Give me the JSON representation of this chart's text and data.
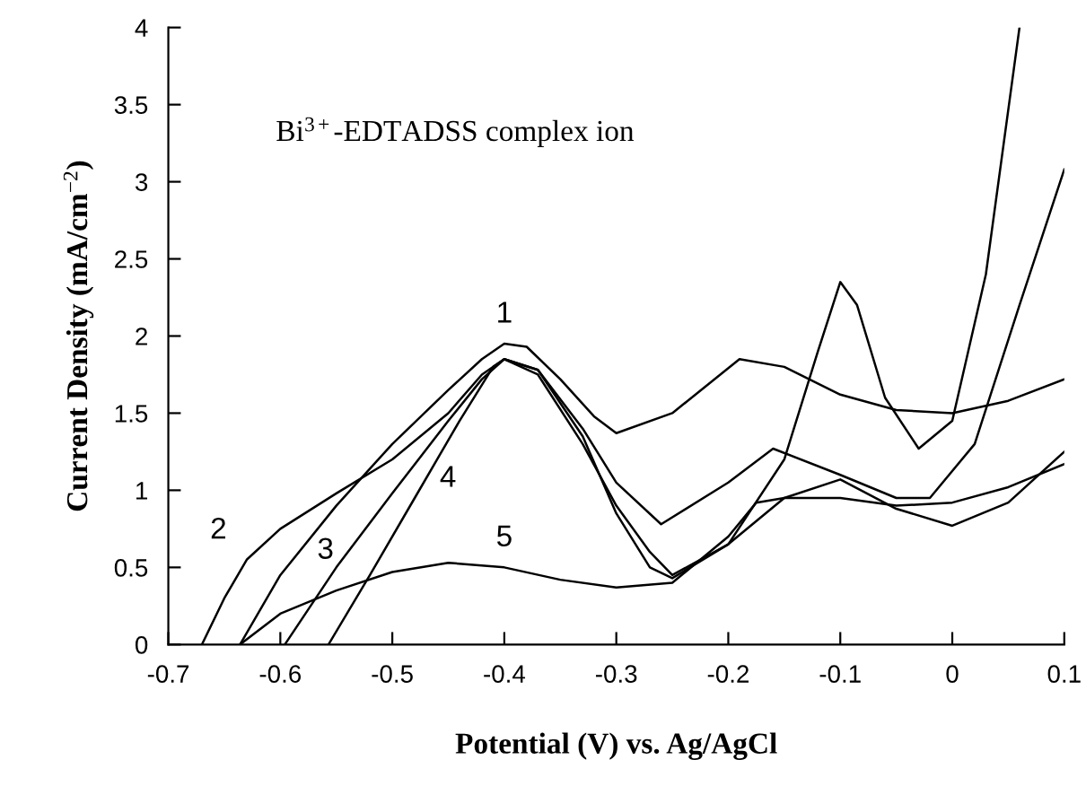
{
  "chart_data": {
    "type": "line",
    "xlabel": "Potential (V) vs. Ag/AgCl",
    "ylabel": "Current Density (mA/cm$^{−2}$)",
    "xlim": [
      -0.7,
      0.1
    ],
    "ylim": [
      0,
      4
    ],
    "xticks": [
      -0.7,
      -0.6,
      -0.5,
      -0.4,
      -0.3,
      -0.2,
      -0.1,
      0,
      0.1
    ],
    "yticks": [
      0,
      0.5,
      1,
      1.5,
      2,
      2.5,
      3,
      3.5,
      4
    ],
    "grid": false,
    "marker": "none",
    "line_style": "solid",
    "annotations": [
      "Bi$^{3+}$-EDTADSS complex ion"
    ],
    "series": [
      {
        "name": "1",
        "color": "#000000",
        "x": [
          -0.636,
          -0.6,
          -0.55,
          -0.5,
          -0.45,
          -0.42,
          -0.4,
          -0.38,
          -0.35,
          -0.32,
          -0.3,
          -0.25,
          -0.19,
          -0.15,
          -0.1,
          -0.05,
          0,
          0.05,
          0.1
        ],
        "values": [
          0,
          0.45,
          0.9,
          1.3,
          1.65,
          1.85,
          1.95,
          1.93,
          1.72,
          1.48,
          1.37,
          1.5,
          1.85,
          1.8,
          1.62,
          1.52,
          1.5,
          1.58,
          1.72
        ]
      },
      {
        "name": "2",
        "color": "#000000",
        "x": [
          -0.67,
          -0.65,
          -0.63,
          -0.6,
          -0.55,
          -0.5,
          -0.45,
          -0.42,
          -0.4,
          -0.37,
          -0.33,
          -0.3,
          -0.26,
          -0.2,
          -0.16,
          -0.1,
          -0.05,
          -0.02,
          0.02,
          0.06,
          0.1
        ],
        "values": [
          0,
          0.3,
          0.55,
          0.75,
          0.98,
          1.2,
          1.5,
          1.75,
          1.85,
          1.78,
          1.4,
          1.05,
          0.78,
          1.05,
          1.27,
          1.1,
          0.95,
          0.95,
          1.3,
          2.2,
          3.08
        ]
      },
      {
        "name": "3",
        "color": "#000000",
        "x": [
          -0.596,
          -0.55,
          -0.5,
          -0.45,
          -0.42,
          -0.4,
          -0.37,
          -0.33,
          -0.3,
          -0.27,
          -0.25,
          -0.2,
          -0.15,
          -0.12,
          -0.1,
          -0.085,
          -0.06,
          -0.03,
          0,
          0.03,
          0.06
        ],
        "values": [
          0,
          0.5,
          0.98,
          1.45,
          1.72,
          1.85,
          1.78,
          1.35,
          0.85,
          0.5,
          0.43,
          0.65,
          1.2,
          1.9,
          2.35,
          2.2,
          1.6,
          1.27,
          1.45,
          2.4,
          4.0
        ]
      },
      {
        "name": "4",
        "color": "#000000",
        "x": [
          -0.557,
          -0.52,
          -0.48,
          -0.44,
          -0.41,
          -0.4,
          -0.37,
          -0.33,
          -0.3,
          -0.27,
          -0.25,
          -0.2,
          -0.15,
          -0.1,
          -0.05,
          0,
          0.05,
          0.1
        ],
        "values": [
          0,
          0.45,
          0.95,
          1.45,
          1.8,
          1.85,
          1.75,
          1.3,
          0.9,
          0.6,
          0.45,
          0.65,
          0.95,
          1.07,
          0.88,
          0.77,
          0.92,
          1.25
        ]
      },
      {
        "name": "5",
        "color": "#000000",
        "x": [
          -0.636,
          -0.6,
          -0.55,
          -0.5,
          -0.45,
          -0.4,
          -0.35,
          -0.3,
          -0.25,
          -0.2,
          -0.175,
          -0.15,
          -0.1,
          -0.05,
          0,
          0.05,
          0.1
        ],
        "values": [
          0,
          0.2,
          0.35,
          0.47,
          0.53,
          0.5,
          0.42,
          0.37,
          0.4,
          0.7,
          0.92,
          0.95,
          0.95,
          0.9,
          0.92,
          1.02,
          1.17
        ]
      }
    ]
  }
}
